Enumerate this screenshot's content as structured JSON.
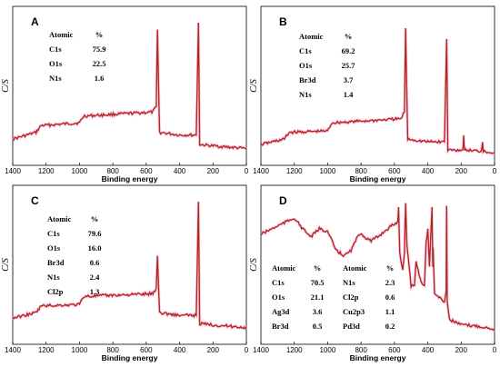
{
  "figure": {
    "xlabel": "Binding energy",
    "ylabel": "C/S",
    "colors": {
      "spectrum": "#8b3a1f",
      "noise": "#e8141a",
      "halo": "#f4b0e4"
    }
  },
  "chart_data": [
    {
      "type": "line",
      "panel": "A",
      "xlabel": "Binding energy",
      "ylabel": "C/S",
      "xlim": [
        1400,
        0
      ],
      "xreverse": true,
      "x_ticks": [
        1400,
        1200,
        1000,
        800,
        600,
        400,
        200,
        0
      ],
      "series": [
        {
          "x": [
            1400,
            1260,
            1230,
            1000,
            975,
            560,
            540,
            533,
            520,
            400,
            300,
            287,
            280,
            200,
            100,
            0
          ],
          "y": [
            0.14,
            0.19,
            0.24,
            0.26,
            0.31,
            0.34,
            0.38,
            0.95,
            0.19,
            0.17,
            0.17,
            1.0,
            0.1,
            0.09,
            0.08,
            0.07
          ]
        }
      ],
      "composition": {
        "header": [
          "Atomic",
          "%"
        ],
        "rows": [
          [
            "C1s",
            "75.9"
          ],
          [
            "O1s",
            "22.5"
          ],
          [
            "N1s",
            "1.6"
          ]
        ]
      }
    },
    {
      "type": "line",
      "panel": "B",
      "xlabel": "Binding energy",
      "ylabel": "C/S",
      "xlim": [
        1400,
        0
      ],
      "xreverse": true,
      "x_ticks": [
        1400,
        1200,
        1000,
        800,
        600,
        400,
        200,
        0
      ],
      "series": [
        {
          "x": [
            1400,
            1260,
            1230,
            1000,
            975,
            560,
            540,
            533,
            520,
            400,
            300,
            287,
            280,
            190,
            185,
            180,
            80,
            72,
            68,
            0
          ],
          "y": [
            0.1,
            0.14,
            0.19,
            0.2,
            0.26,
            0.29,
            0.34,
            0.96,
            0.14,
            0.12,
            0.12,
            0.88,
            0.06,
            0.06,
            0.16,
            0.06,
            0.05,
            0.12,
            0.05,
            0.04
          ]
        }
      ],
      "composition": {
        "header": [
          "Atomic",
          "%"
        ],
        "rows": [
          [
            "C1s",
            "69.2"
          ],
          [
            "O1s",
            "25.7"
          ],
          [
            "Br3d",
            "3.7"
          ],
          [
            "N1s",
            "1.4"
          ]
        ]
      }
    },
    {
      "type": "line",
      "panel": "C",
      "xlabel": "Binding energy",
      "ylabel": "C/S",
      "xlim": [
        1400,
        0
      ],
      "xreverse": true,
      "x_ticks": [
        1400,
        1200,
        1000,
        800,
        600,
        400,
        200,
        0
      ],
      "series": [
        {
          "x": [
            1400,
            1260,
            1230,
            1000,
            975,
            560,
            540,
            533,
            520,
            400,
            300,
            287,
            280,
            200,
            100,
            0
          ],
          "y": [
            0.14,
            0.18,
            0.23,
            0.24,
            0.3,
            0.32,
            0.36,
            0.6,
            0.18,
            0.16,
            0.16,
            1.0,
            0.1,
            0.09,
            0.08,
            0.07
          ]
        }
      ],
      "composition": {
        "header": [
          "Atomic",
          "%"
        ],
        "rows": [
          [
            "C1s",
            "79.6"
          ],
          [
            "O1s",
            "16.0"
          ],
          [
            "Br3d",
            "0.6"
          ],
          [
            "N1s",
            "2.4"
          ],
          [
            "Cl2p",
            "1.3"
          ]
        ]
      }
    },
    {
      "type": "line",
      "panel": "D",
      "xlabel": "Binding energy",
      "ylabel": "C/S",
      "xlim": [
        1400,
        0
      ],
      "xreverse": true,
      "x_ticks": [
        1400,
        1200,
        1000,
        800,
        600,
        400,
        200,
        0
      ],
      "series": [
        {
          "x": [
            1400,
            1300,
            1200,
            1150,
            1100,
            1050,
            1000,
            950,
            900,
            860,
            820,
            800,
            780,
            740,
            700,
            660,
            620,
            580,
            575,
            568,
            550,
            540,
            533,
            525,
            500,
            480,
            470,
            440,
            420,
            410,
            400,
            390,
            375,
            370,
            368,
            360,
            300,
            290,
            287,
            284,
            270,
            200,
            100,
            0
          ],
          "y": [
            0.76,
            0.82,
            0.88,
            0.8,
            0.74,
            0.8,
            0.78,
            0.64,
            0.6,
            0.64,
            0.74,
            0.77,
            0.74,
            0.71,
            0.74,
            0.78,
            0.82,
            0.85,
            0.96,
            0.62,
            0.5,
            0.62,
            0.99,
            0.68,
            0.38,
            0.38,
            0.56,
            0.4,
            0.38,
            0.7,
            0.8,
            0.52,
            0.96,
            0.52,
            0.66,
            0.32,
            0.26,
            0.34,
            0.97,
            0.26,
            0.13,
            0.09,
            0.08,
            0.06
          ]
        }
      ],
      "composition": {
        "header": [
          "Atomic",
          "%"
        ],
        "rows": [
          [
            "C1s",
            "70.5"
          ],
          [
            "O1s",
            "21.1"
          ],
          [
            "Ag3d",
            "3.6"
          ],
          [
            "Br3d",
            "0.5"
          ]
        ],
        "header2": [
          "Atomic",
          "%"
        ],
        "rows2": [
          [
            "N1s",
            "2.3"
          ],
          [
            "Cl2p",
            "0.6"
          ],
          [
            "Cu2p3",
            "1.1"
          ],
          [
            "Pd3d",
            "0.2"
          ]
        ]
      }
    }
  ]
}
